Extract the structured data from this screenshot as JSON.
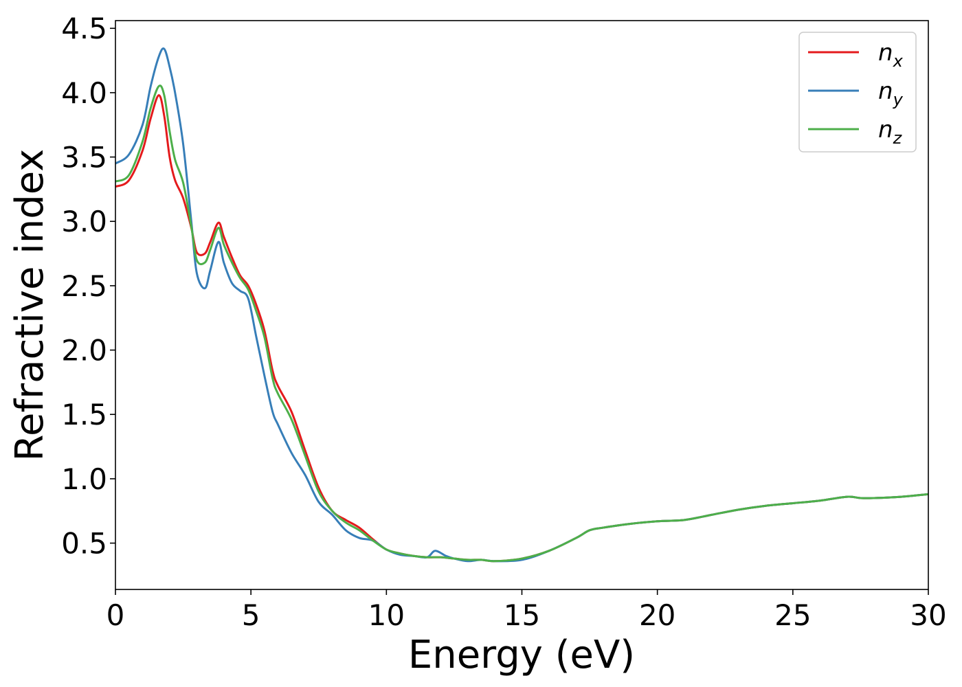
{
  "chart_data": {
    "type": "line",
    "title": "",
    "xlabel": "Energy (eV)",
    "ylabel": "Refractive index",
    "xlim": [
      0,
      30
    ],
    "ylim": [
      0.14,
      4.56
    ],
    "xticks": [
      0,
      5,
      10,
      15,
      20,
      25,
      30
    ],
    "yticks": [
      0.5,
      1.0,
      1.5,
      2.0,
      2.5,
      3.0,
      3.5,
      4.0,
      4.5
    ],
    "grid": false,
    "legend_position": "top-right",
    "series": [
      {
        "name": "n",
        "subscript": "x",
        "color": "#e41a1c",
        "x": [
          0,
          0.5,
          1.0,
          1.3,
          1.6,
          1.8,
          2.0,
          2.2,
          2.5,
          2.8,
          3.0,
          3.3,
          3.5,
          3.8,
          4.0,
          4.3,
          4.6,
          4.9,
          5.2,
          5.5,
          5.8,
          6.0,
          6.5,
          7.0,
          7.5,
          8.0,
          8.5,
          9.0,
          9.5,
          10.0,
          10.5,
          11.0,
          11.5,
          12.0,
          12.5,
          13.0,
          13.5,
          14.0,
          15.0,
          16.0,
          17.0,
          17.5,
          18.0,
          19.0,
          20.0,
          21.0,
          22.0,
          23.0,
          24.0,
          25.0,
          26.0,
          27.0,
          27.5,
          28.0,
          29.0,
          30.0
        ],
        "y": [
          3.27,
          3.32,
          3.55,
          3.8,
          3.98,
          3.82,
          3.5,
          3.32,
          3.18,
          2.95,
          2.76,
          2.75,
          2.84,
          2.99,
          2.88,
          2.72,
          2.58,
          2.5,
          2.35,
          2.15,
          1.84,
          1.72,
          1.52,
          1.22,
          0.93,
          0.75,
          0.68,
          0.62,
          0.53,
          0.45,
          0.42,
          0.4,
          0.39,
          0.39,
          0.38,
          0.37,
          0.37,
          0.36,
          0.38,
          0.44,
          0.54,
          0.6,
          0.62,
          0.65,
          0.67,
          0.68,
          0.72,
          0.76,
          0.79,
          0.81,
          0.83,
          0.86,
          0.85,
          0.85,
          0.86,
          0.88
        ]
      },
      {
        "name": "n",
        "subscript": "y",
        "color": "#377eb8",
        "x": [
          0,
          0.5,
          1.0,
          1.3,
          1.6,
          1.8,
          2.0,
          2.2,
          2.5,
          2.8,
          3.0,
          3.3,
          3.5,
          3.8,
          4.0,
          4.3,
          4.6,
          4.9,
          5.2,
          5.5,
          5.8,
          6.0,
          6.5,
          7.0,
          7.5,
          8.0,
          8.5,
          9.0,
          9.5,
          10.0,
          10.5,
          11.0,
          11.5,
          11.8,
          12.2,
          12.5,
          13.0,
          13.5,
          14.0,
          15.0,
          16.0,
          17.0,
          17.5,
          18.0,
          19.0,
          20.0,
          21.0,
          22.0,
          23.0,
          24.0,
          25.0,
          26.0,
          27.0,
          27.5,
          28.0,
          29.0,
          30.0
        ],
        "y": [
          3.45,
          3.52,
          3.75,
          4.05,
          4.28,
          4.34,
          4.2,
          4.0,
          3.6,
          3.0,
          2.6,
          2.48,
          2.62,
          2.84,
          2.68,
          2.52,
          2.46,
          2.4,
          2.1,
          1.8,
          1.52,
          1.42,
          1.2,
          1.03,
          0.82,
          0.72,
          0.6,
          0.54,
          0.52,
          0.45,
          0.41,
          0.4,
          0.39,
          0.44,
          0.4,
          0.38,
          0.36,
          0.37,
          0.36,
          0.37,
          0.44,
          0.54,
          0.6,
          0.62,
          0.65,
          0.67,
          0.68,
          0.72,
          0.76,
          0.79,
          0.81,
          0.83,
          0.86,
          0.85,
          0.85,
          0.86,
          0.88
        ]
      },
      {
        "name": "n",
        "subscript": "z",
        "color": "#4daf4a",
        "x": [
          0,
          0.5,
          1.0,
          1.3,
          1.6,
          1.8,
          2.0,
          2.2,
          2.5,
          2.8,
          3.0,
          3.3,
          3.5,
          3.8,
          4.0,
          4.3,
          4.6,
          4.9,
          5.2,
          5.5,
          5.8,
          6.0,
          6.5,
          7.0,
          7.5,
          8.0,
          8.5,
          9.0,
          9.5,
          10.0,
          10.5,
          11.0,
          11.5,
          12.0,
          12.5,
          13.0,
          13.5,
          14.0,
          15.0,
          16.0,
          17.0,
          17.5,
          18.0,
          19.0,
          20.0,
          21.0,
          22.0,
          23.0,
          24.0,
          25.0,
          26.0,
          27.0,
          27.5,
          28.0,
          29.0,
          30.0
        ],
        "y": [
          3.31,
          3.36,
          3.62,
          3.88,
          4.05,
          3.98,
          3.7,
          3.48,
          3.3,
          2.96,
          2.7,
          2.68,
          2.78,
          2.95,
          2.82,
          2.68,
          2.56,
          2.47,
          2.3,
          2.1,
          1.78,
          1.66,
          1.46,
          1.18,
          0.9,
          0.75,
          0.66,
          0.6,
          0.52,
          0.45,
          0.42,
          0.4,
          0.39,
          0.39,
          0.38,
          0.37,
          0.37,
          0.36,
          0.38,
          0.44,
          0.54,
          0.6,
          0.62,
          0.65,
          0.67,
          0.68,
          0.72,
          0.76,
          0.79,
          0.81,
          0.83,
          0.86,
          0.85,
          0.85,
          0.86,
          0.88
        ]
      }
    ]
  }
}
